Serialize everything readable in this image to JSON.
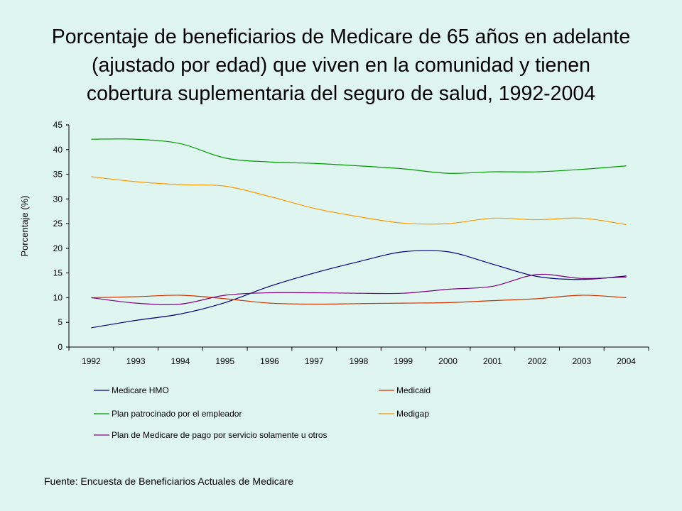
{
  "title_lines": [
    "Porcentaje de beneficiarios de Medicare de 65 años en adelante",
    "(ajustado por edad) que viven en la comunidad y tienen",
    "cobertura suplementaria del seguro de salud, 1992-2004"
  ],
  "source": "Fuente: Encuesta de Beneficiarios Actuales de Medicare",
  "chart_data": {
    "type": "line",
    "title": "Porcentaje de beneficiarios de Medicare de 65 años en adelante (ajustado por edad) que viven en la comunidad y tienen cobertura suplementaria del seguro de salud, 1992-2004",
    "ylabel": "Porcentaje (%)",
    "xlabel": "",
    "x": [
      "1992",
      "1993",
      "1994",
      "1995",
      "1996",
      "1997",
      "1998",
      "1999",
      "2000",
      "2001",
      "2002",
      "2003",
      "2004"
    ],
    "ylim": [
      0,
      45
    ],
    "yticks": [
      "0",
      "5",
      "10",
      "15",
      "20",
      "25",
      "30",
      "35",
      "40",
      "45"
    ],
    "grid": false,
    "legend_position": "bottom",
    "series": [
      {
        "name": "Medicare HMO",
        "color": "#000080",
        "values": [
          3.9,
          5.4,
          6.7,
          9.0,
          12.3,
          15.0,
          17.3,
          19.3,
          19.3,
          16.8,
          14.3,
          13.7,
          14.4
        ]
      },
      {
        "name": "Medicaid",
        "color": "#cc3300",
        "values": [
          10.0,
          10.2,
          10.5,
          9.8,
          8.9,
          8.7,
          8.8,
          8.9,
          9.0,
          9.4,
          9.8,
          10.5,
          10.0
        ]
      },
      {
        "name": "Plan patrocinado por el empleador",
        "color": "#009900",
        "values": [
          42.1,
          42.1,
          41.2,
          38.3,
          37.5,
          37.2,
          36.7,
          36.1,
          35.2,
          35.5,
          35.5,
          36.0,
          36.7
        ]
      },
      {
        "name": "Medigap",
        "color": "#ff9900",
        "values": [
          34.5,
          33.5,
          32.9,
          32.6,
          30.5,
          28.1,
          26.4,
          25.1,
          25.0,
          26.1,
          25.8,
          26.1,
          24.8
        ]
      },
      {
        "name": "Plan de Medicare de pago por servicio solamente u otros",
        "color": "#800080",
        "values": [
          10.0,
          8.9,
          8.7,
          10.5,
          11.0,
          11.0,
          10.9,
          10.9,
          11.7,
          12.3,
          14.7,
          13.9,
          14.2
        ]
      }
    ]
  }
}
